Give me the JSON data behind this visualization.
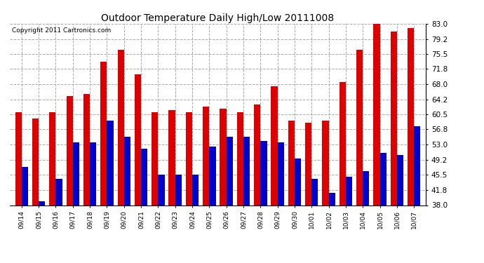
{
  "title": "Outdoor Temperature Daily High/Low 20111008",
  "copyright": "Copyright 2011 Cartronics.com",
  "dates": [
    "09/14",
    "09/15",
    "09/16",
    "09/17",
    "09/18",
    "09/19",
    "09/20",
    "09/21",
    "09/22",
    "09/23",
    "09/24",
    "09/25",
    "09/26",
    "09/27",
    "09/28",
    "09/29",
    "09/30",
    "10/01",
    "10/02",
    "10/03",
    "10/04",
    "10/05",
    "10/06",
    "10/07"
  ],
  "highs": [
    61.0,
    59.5,
    61.0,
    65.0,
    65.5,
    73.5,
    76.5,
    70.5,
    61.0,
    61.5,
    61.0,
    62.5,
    62.0,
    61.0,
    63.0,
    67.5,
    59.0,
    58.5,
    59.0,
    68.5,
    76.5,
    83.0,
    81.0,
    82.0
  ],
  "lows": [
    47.5,
    39.0,
    44.5,
    53.5,
    53.5,
    59.0,
    55.0,
    52.0,
    45.5,
    45.5,
    45.5,
    52.5,
    55.0,
    55.0,
    54.0,
    53.5,
    49.5,
    44.5,
    41.0,
    45.0,
    46.5,
    51.0,
    50.5,
    57.5
  ],
  "high_color": "#dd0000",
  "low_color": "#0000cc",
  "bg_color": "#ffffff",
  "plot_bg_color": "#ffffff",
  "grid_color": "#aaaaaa",
  "ylim_min": 38.0,
  "ylim_max": 83.0,
  "yticks": [
    38.0,
    41.8,
    45.5,
    49.2,
    53.0,
    56.8,
    60.5,
    64.2,
    68.0,
    71.8,
    75.5,
    79.2,
    83.0
  ],
  "bar_width": 0.38,
  "title_fontsize": 10,
  "copyright_fontsize": 6.5,
  "xlabel_fontsize": 6.5,
  "ylabel_fontsize": 7.5
}
